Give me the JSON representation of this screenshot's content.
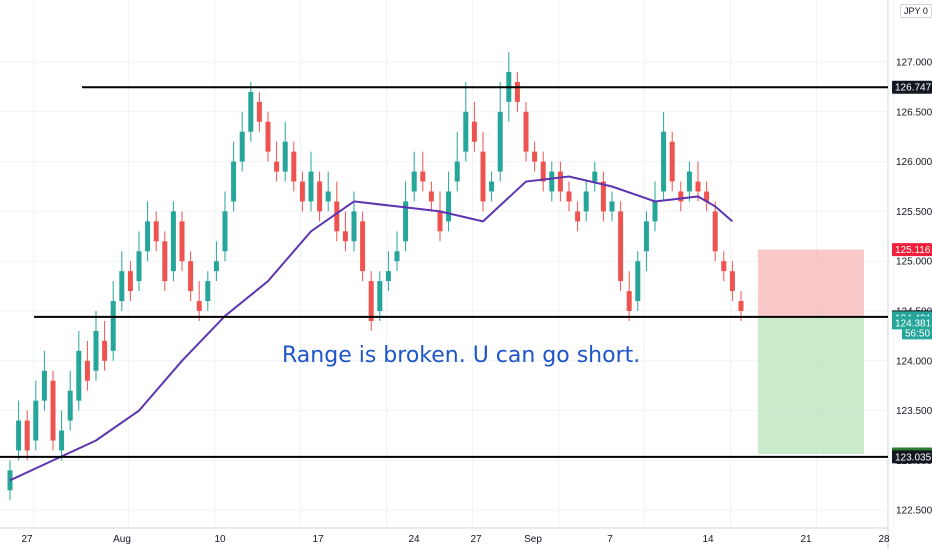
{
  "currency_label": "JPY",
  "currency_suffix": "0",
  "annotation": "Range is broken. U can go short.",
  "colors": {
    "up": "#26a69a",
    "down": "#ef5350",
    "ma": "#5e35b1",
    "level": "#000000",
    "stop_zone": "#f7b6b6",
    "target_zone": "#b7e4b7",
    "annotation": "#1e55c8"
  },
  "chart_data": {
    "type": "line",
    "title": "",
    "xlabel": "",
    "ylabel": "",
    "x_ticks": [
      "27",
      "Aug",
      "10",
      "17",
      "24",
      "27",
      "Sep",
      "7",
      "14",
      "21",
      "28"
    ],
    "y_ticks": [
      "122.500",
      "123.000",
      "123.500",
      "124.000",
      "124.500",
      "125.000",
      "125.500",
      "126.000",
      "126.500",
      "127.000"
    ],
    "ylim": [
      122.35,
      127.35
    ],
    "n_bars": 100,
    "x_tick_bars": [
      0,
      11,
      21,
      31,
      41,
      51,
      61,
      71,
      81,
      91,
      100
    ],
    "series": [
      {
        "type": "line",
        "points": [
          [
            0,
            122.8
          ],
          [
            5,
            123.0
          ],
          [
            10,
            123.2
          ],
          [
            15,
            123.5
          ],
          [
            20,
            124.0
          ],
          [
            25,
            124.45
          ],
          [
            30,
            124.8
          ],
          [
            35,
            125.3
          ],
          [
            40,
            125.6
          ],
          [
            45,
            125.55
          ],
          [
            50,
            125.5
          ],
          [
            55,
            125.4
          ],
          [
            60,
            125.8
          ],
          [
            65,
            125.85
          ],
          [
            70,
            125.75
          ],
          [
            75,
            125.6
          ],
          [
            80,
            125.65
          ],
          [
            82,
            125.55
          ],
          [
            84,
            125.4
          ]
        ]
      },
      {
        "type": "candles",
        "close": [
          122.9,
          123.4,
          123.1,
          123.6,
          123.9,
          123.2,
          123.3,
          123.7,
          124.1,
          123.8,
          124.3,
          124.0,
          124.6,
          124.9,
          124.7,
          125.1,
          125.4,
          125.2,
          124.8,
          125.5,
          125.0,
          124.7,
          124.5,
          124.8,
          125.0,
          125.5,
          126.0,
          126.3,
          126.7,
          126.4,
          126.1,
          125.9,
          126.2,
          125.8,
          125.6,
          125.9,
          125.5,
          125.7,
          125.3,
          125.2,
          125.5,
          124.9,
          124.4,
          124.8,
          124.9,
          125.1,
          125.6,
          125.9,
          125.8,
          125.6,
          125.3,
          125.7,
          126.0,
          126.5,
          126.2,
          125.6,
          125.8,
          126.5,
          126.9,
          126.6,
          126.1,
          126.0,
          125.8,
          125.9,
          125.7,
          125.6,
          125.4,
          125.7,
          125.9,
          125.5,
          125.6,
          124.8,
          124.5,
          125.0,
          125.4,
          125.6,
          126.3,
          125.8,
          125.6,
          125.9,
          125.7,
          125.6,
          125.1,
          124.9,
          124.7,
          124.5
        ],
        "open": [
          122.7,
          123.1,
          123.4,
          123.2,
          123.6,
          123.8,
          123.1,
          123.4,
          123.6,
          124.0,
          123.9,
          124.2,
          124.1,
          124.6,
          124.9,
          124.8,
          125.1,
          125.4,
          125.2,
          124.9,
          125.4,
          125.0,
          124.6,
          124.6,
          124.9,
          125.1,
          125.6,
          126.0,
          126.3,
          126.6,
          126.4,
          126.0,
          125.9,
          126.1,
          125.8,
          125.6,
          125.8,
          125.6,
          125.6,
          125.3,
          125.2,
          125.4,
          124.8,
          124.5,
          124.8,
          125.0,
          125.2,
          125.7,
          125.9,
          125.7,
          125.5,
          125.4,
          125.8,
          126.1,
          126.4,
          126.1,
          125.7,
          125.9,
          126.6,
          126.8,
          126.5,
          126.1,
          126.0,
          125.7,
          125.9,
          125.7,
          125.5,
          125.5,
          125.8,
          125.8,
          125.5,
          125.5,
          124.7,
          124.6,
          125.1,
          125.4,
          125.7,
          126.2,
          125.7,
          125.7,
          125.8,
          125.7,
          125.5,
          125.0,
          124.9,
          124.6
        ],
        "high": [
          123.0,
          123.6,
          123.5,
          123.8,
          124.1,
          123.9,
          123.5,
          123.9,
          124.3,
          124.2,
          124.5,
          124.4,
          124.8,
          125.1,
          125.0,
          125.3,
          125.6,
          125.5,
          125.3,
          125.6,
          125.5,
          125.1,
          124.8,
          124.9,
          125.2,
          125.7,
          126.2,
          126.5,
          126.8,
          126.7,
          126.5,
          126.2,
          126.4,
          126.2,
          125.9,
          126.1,
          125.9,
          125.9,
          125.8,
          125.5,
          125.7,
          125.5,
          124.9,
          124.9,
          125.1,
          125.3,
          125.8,
          126.1,
          126.1,
          125.8,
          125.7,
          125.9,
          126.3,
          126.8,
          126.6,
          126.3,
          125.9,
          126.8,
          127.1,
          126.9,
          126.6,
          126.2,
          126.1,
          126.0,
          126.0,
          125.8,
          125.6,
          125.8,
          126.0,
          125.9,
          125.7,
          125.6,
          124.9,
          125.1,
          125.5,
          125.8,
          126.5,
          126.3,
          125.8,
          126.0,
          126.0,
          125.8,
          125.6,
          125.1,
          125.0,
          124.7
        ],
        "low": [
          122.6,
          123.0,
          123.0,
          123.1,
          123.5,
          123.1,
          123.0,
          123.3,
          123.5,
          123.7,
          123.8,
          123.9,
          124.0,
          124.5,
          124.6,
          124.7,
          125.0,
          125.1,
          124.7,
          124.8,
          124.9,
          124.6,
          124.4,
          124.5,
          124.8,
          125.0,
          125.5,
          125.9,
          126.2,
          126.3,
          126.0,
          125.8,
          125.8,
          125.7,
          125.5,
          125.5,
          125.4,
          125.5,
          125.2,
          125.1,
          125.1,
          124.8,
          124.3,
          124.4,
          124.7,
          124.9,
          125.1,
          125.6,
          125.7,
          125.5,
          125.2,
          125.3,
          125.7,
          126.0,
          126.1,
          125.5,
          125.6,
          125.8,
          126.4,
          126.5,
          126.0,
          125.9,
          125.7,
          125.6,
          125.6,
          125.5,
          125.3,
          125.4,
          125.7,
          125.4,
          125.4,
          124.7,
          124.4,
          124.5,
          124.9,
          125.3,
          125.6,
          125.7,
          125.5,
          125.6,
          125.6,
          125.5,
          125.0,
          124.8,
          124.6,
          124.4
        ]
      }
    ],
    "horizontal_levels": [
      126.747,
      124.441,
      123.035
    ],
    "stop_zone": [
      124.441,
      125.116
    ],
    "target_zone": [
      123.064,
      124.441
    ],
    "price_tags": [
      {
        "value": 126.747,
        "label": "126.747",
        "bg": "#131722",
        "fg": "#ffffff"
      },
      {
        "value": 125.116,
        "label": "125.116",
        "bg": "#ef1f3b",
        "fg": "#ffffff"
      },
      {
        "value": 124.441,
        "label": "124.441",
        "bg": "#131722",
        "fg": "#ffffff"
      },
      {
        "value": 124.431,
        "label": "124.431",
        "bg": "#26a69a",
        "fg": "#ffffff"
      },
      {
        "value": 124.381,
        "label": "124.381",
        "bg": "#26a69a",
        "fg": "#ffffff"
      },
      {
        "value": 124.28,
        "label": "56:50",
        "bg": "#26a69a",
        "fg": "#ffffff"
      },
      {
        "value": 123.064,
        "label": "123.064",
        "bg": "#2e7d32",
        "fg": "#ffffff"
      },
      {
        "value": 123.035,
        "label": "123.035",
        "bg": "#131722",
        "fg": "#ffffff"
      }
    ]
  }
}
